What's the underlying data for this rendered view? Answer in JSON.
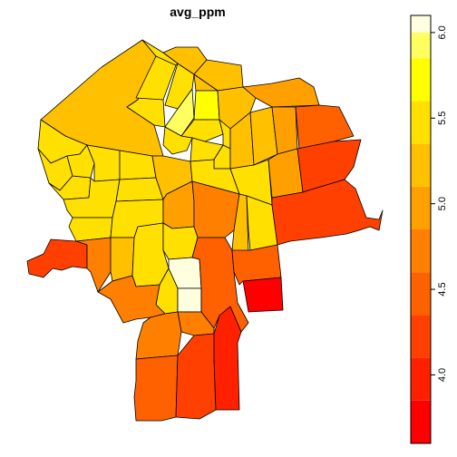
{
  "map": {
    "title": "avg_ppm",
    "legend": {
      "ticks": [
        "4.0",
        "4.5",
        "5.0",
        "5.5",
        "6.0"
      ],
      "tick_values": [
        4.0,
        4.5,
        5.0,
        5.5,
        6.0
      ],
      "range": [
        3.6,
        6.1
      ],
      "bins": [
        {
          "from": 3.6,
          "to": 3.85,
          "color": "#FF0000"
        },
        {
          "from": 3.85,
          "to": 4.1,
          "color": "#FF2000"
        },
        {
          "from": 4.1,
          "to": 4.35,
          "color": "#FF4000"
        },
        {
          "from": 4.35,
          "to": 4.6,
          "color": "#FF6000"
        },
        {
          "from": 4.6,
          "to": 4.85,
          "color": "#FF8000"
        },
        {
          "from": 4.85,
          "to": 5.1,
          "color": "#FFA000"
        },
        {
          "from": 5.1,
          "to": 5.35,
          "color": "#FFC000"
        },
        {
          "from": 5.35,
          "to": 5.6,
          "color": "#FFE000"
        },
        {
          "from": 5.6,
          "to": 5.85,
          "color": "#FFFF00"
        },
        {
          "from": 5.85,
          "to": 6.0,
          "color": "#FFFF60"
        },
        {
          "from": 6.0,
          "to": 6.1,
          "color": "#FFFFE0"
        }
      ]
    }
  }
}
